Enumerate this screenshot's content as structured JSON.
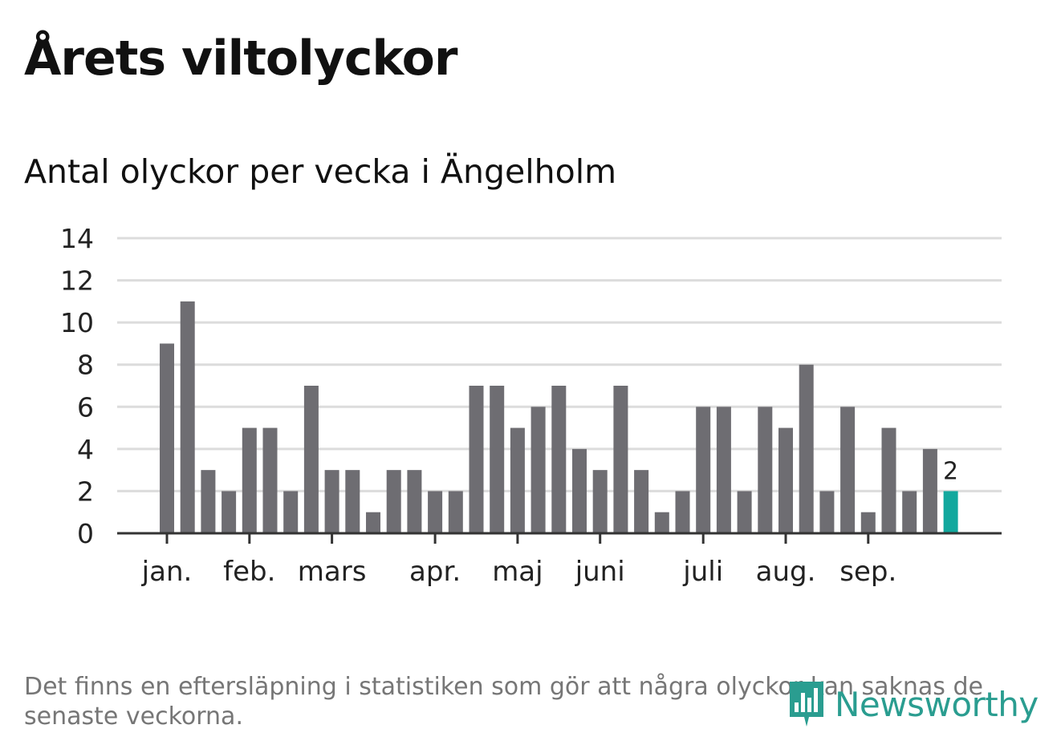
{
  "title": "Årets viltolyckor",
  "subtitle": "Antal olyckor per vecka i Ängelholm",
  "footnote": "Det finns en eftersläpning i statistiken som gör att några olyckor kan saknas de senaste veckorna.",
  "logo": {
    "text": "Newsworthy",
    "icon": "newsworthy-bar-chart-icon"
  },
  "colors": {
    "bar": "#6e6d72",
    "highlight": "#13a89e",
    "grid": "#dcdcdc",
    "axis": "#333333",
    "text": "#222222"
  },
  "chart_data": {
    "type": "bar",
    "title": "Antal olyckor per vecka i Ängelholm",
    "xlabel": "",
    "ylabel": "",
    "ylim": [
      0,
      14
    ],
    "yticks": [
      "0",
      "2",
      "4",
      "6",
      "8",
      "10",
      "12",
      "14"
    ],
    "grid": true,
    "values": [
      9,
      11,
      3,
      2,
      5,
      5,
      2,
      7,
      3,
      3,
      1,
      3,
      3,
      2,
      2,
      7,
      7,
      5,
      6,
      7,
      4,
      3,
      7,
      3,
      1,
      2,
      6,
      6,
      2,
      6,
      5,
      8,
      2,
      6,
      1,
      5,
      2,
      4,
      2
    ],
    "highlight_index": 38,
    "highlight_label": "2",
    "months": [
      {
        "label": "jan.",
        "bar_index": 0
      },
      {
        "label": "feb.",
        "bar_index": 4
      },
      {
        "label": "mars",
        "bar_index": 8
      },
      {
        "label": "apr.",
        "bar_index": 13
      },
      {
        "label": "maj",
        "bar_index": 17
      },
      {
        "label": "juni",
        "bar_index": 21
      },
      {
        "label": "juli",
        "bar_index": 26
      },
      {
        "label": "aug.",
        "bar_index": 30
      },
      {
        "label": "sep.",
        "bar_index": 34
      }
    ]
  }
}
